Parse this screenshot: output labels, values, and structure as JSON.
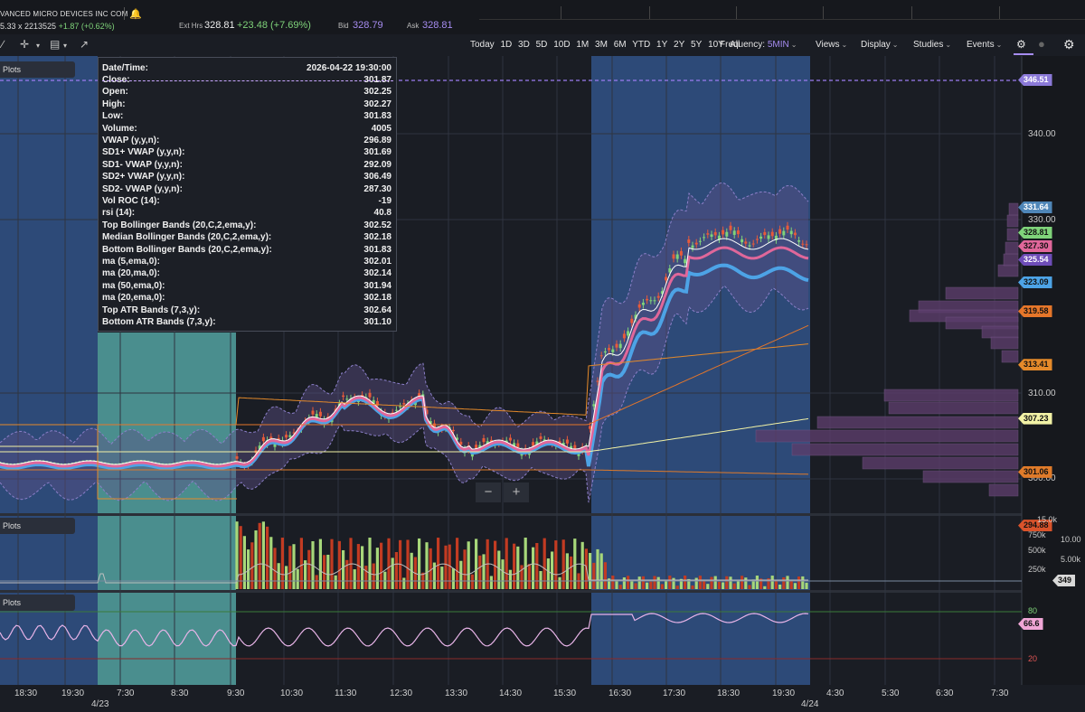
{
  "header": {
    "company": "VANCED MICRO DEVICES INC COM",
    "price_line": "5.33 x 2213525",
    "price_change": "+1.87 (+0.62%)",
    "ext_hrs_label": "Ext Hrs",
    "ext_price": "328.81",
    "ext_change": "+23.48 (+7.69%)",
    "bid_label": "Bid",
    "bid_value": "328.79",
    "ask_label": "Ask",
    "ask_value": "328.81"
  },
  "ranges": [
    "Today",
    "1D",
    "3D",
    "5D",
    "10D",
    "1M",
    "3M",
    "6M",
    "YTD",
    "1Y",
    "2Y",
    "5Y",
    "10Y",
    "All"
  ],
  "menus": {
    "frequency_label": "Frequency:",
    "frequency_value": "5MIN",
    "views": "Views",
    "display": "Display",
    "studies": "Studies",
    "events": "Events"
  },
  "panels": {
    "plots_label": "Plots"
  },
  "tooltip": {
    "datetime_label": "Date/Time:",
    "datetime_value": "2026-04-22 19:30:00",
    "rows": [
      {
        "k": "Close:",
        "v": "301.87"
      },
      {
        "k": "Open:",
        "v": "302.25"
      },
      {
        "k": "High:",
        "v": "302.27"
      },
      {
        "k": "Low:",
        "v": "301.83"
      },
      {
        "k": "Volume:",
        "v": "4005"
      },
      {
        "k": "VWAP (y,y,n):",
        "v": "296.89"
      },
      {
        "k": "SD1+ VWAP (y,y,n):",
        "v": "301.69"
      },
      {
        "k": "SD1- VWAP (y,y,n):",
        "v": "292.09"
      },
      {
        "k": "SD2+ VWAP (y,y,n):",
        "v": "306.49"
      },
      {
        "k": "SD2- VWAP (y,y,n):",
        "v": "287.30"
      },
      {
        "k": "Vol ROC (14):",
        "v": "-19"
      },
      {
        "k": "rsi (14):",
        "v": "40.8"
      },
      {
        "k": "Top Bollinger Bands (20,C,2,ema,y):",
        "v": "302.52"
      },
      {
        "k": "Median Bollinger Bands (20,C,2,ema,y):",
        "v": "302.18"
      },
      {
        "k": "Bottom Bollinger Bands (20,C,2,ema,y):",
        "v": "301.83"
      },
      {
        "k": "ma (5,ema,0):",
        "v": "302.01"
      },
      {
        "k": "ma (20,ma,0):",
        "v": "302.14"
      },
      {
        "k": "ma (50,ema,0):",
        "v": "301.94"
      },
      {
        "k": "ma (20,ema,0):",
        "v": "302.18"
      },
      {
        "k": "Top ATR Bands (7,3,y):",
        "v": "302.64"
      },
      {
        "k": "Bottom ATR Bands (7,3,y):",
        "v": "301.10"
      }
    ]
  },
  "price_axis": [
    "340.00",
    "330.00",
    "310.00",
    "300.00"
  ],
  "price_labels": [
    {
      "value": "346.51",
      "color": "#8b79d8"
    },
    {
      "value": "331.64",
      "color": "#4f86b8"
    },
    {
      "value": "328.81",
      "color": "#7fd37a"
    },
    {
      "value": "327.30",
      "color": "#e0679a"
    },
    {
      "value": "325.54",
      "color": "#6e4db8"
    },
    {
      "value": "323.09",
      "color": "#4da3e6"
    },
    {
      "value": "319.58",
      "color": "#e5762a"
    },
    {
      "value": "313.41",
      "color": "#e58a2a"
    },
    {
      "value": "307.23",
      "color": "#f2f2a6"
    },
    {
      "value": "301.06",
      "color": "#e07b2a"
    },
    {
      "value": "294.88",
      "color": "#d9532b"
    }
  ],
  "volume_axis": [
    "15.0k",
    "750k",
    "10.00",
    "500k",
    "5.00k",
    "250k"
  ],
  "volume_label": "349",
  "rsi_axis": [
    "80",
    "20"
  ],
  "rsi_label": "66.6",
  "time_axis": [
    "18:30",
    "19:30",
    "7:30",
    "8:30",
    "9:30",
    "10:30",
    "11:30",
    "12:30",
    "13:30",
    "14:30",
    "15:30",
    "16:30",
    "17:30",
    "18:30",
    "19:30",
    "4:30",
    "5:30",
    "6:30",
    "7:30"
  ],
  "date_axis": [
    "4/23",
    "4/24"
  ],
  "zoom": {
    "minus": "−",
    "plus": "+"
  }
}
